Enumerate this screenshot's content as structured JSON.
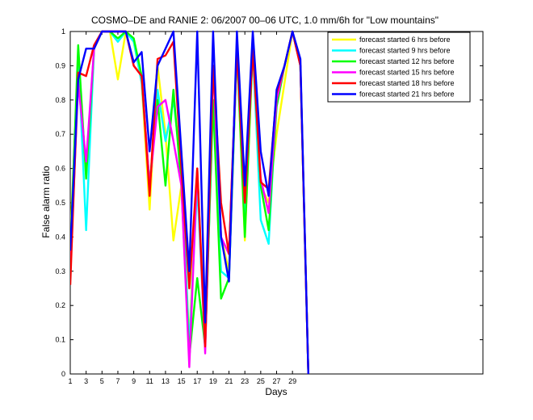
{
  "chart_data": {
    "type": "line",
    "title": "COSMO–DE and RANIE 2: 06/2007 00–06 UTC, 1.0 mm/6h for \"Low mountains\"",
    "xlabel": "Days",
    "ylabel": "False alarm ratio",
    "xlim": [
      1,
      53
    ],
    "ylim": [
      0,
      1
    ],
    "xticks": [
      1,
      3,
      5,
      7,
      9,
      11,
      13,
      15,
      17,
      19,
      21,
      23,
      25,
      27,
      29
    ],
    "yticks": [
      0,
      0.1,
      0.2,
      0.3,
      0.4,
      0.5,
      0.6,
      0.7,
      0.8,
      0.9,
      1
    ],
    "ytick_labels": [
      "0",
      "0.1",
      "0.2",
      "0.3",
      "0.4",
      "0.5",
      "0.6",
      "0.7",
      "0.8",
      "0.9",
      "1"
    ],
    "legend_position": "top-right",
    "grid": false,
    "x": [
      1,
      2,
      3,
      4,
      5,
      6,
      7,
      8,
      9,
      10,
      11,
      12,
      13,
      14,
      15,
      16,
      17,
      18,
      19,
      20,
      21,
      22,
      23,
      24,
      25,
      26,
      27,
      28,
      29,
      30,
      31
    ],
    "series": [
      {
        "name": "forecast started 6 hrs before",
        "color": "#ffff00",
        "values": [
          0.4,
          0.9,
          0.6,
          0.95,
          1.0,
          1.0,
          0.86,
          1.0,
          0.97,
          0.85,
          0.48,
          0.9,
          0.7,
          0.39,
          0.55,
          0.1,
          0.6,
          0.1,
          0.9,
          0.4,
          0.3,
          0.95,
          0.39,
          0.95,
          0.55,
          0.5,
          0.7,
          0.85,
          1.0,
          0.9,
          0.0
        ]
      },
      {
        "name": "forecast started 9 hrs before",
        "color": "#00ffff",
        "values": [
          0.35,
          0.93,
          0.42,
          0.95,
          1.0,
          1.0,
          0.97,
          1.0,
          0.97,
          0.85,
          0.55,
          0.83,
          0.68,
          0.8,
          0.6,
          0.08,
          0.55,
          0.08,
          0.8,
          0.3,
          0.28,
          0.95,
          0.45,
          0.95,
          0.45,
          0.38,
          0.8,
          0.9,
          1.0,
          0.9,
          0.0
        ]
      },
      {
        "name": "forecast started 12 hrs before",
        "color": "#00ff00",
        "values": [
          0.35,
          0.96,
          0.57,
          0.95,
          1.0,
          1.0,
          0.98,
          1.0,
          0.98,
          0.87,
          0.55,
          0.8,
          0.55,
          0.83,
          0.55,
          0.05,
          0.28,
          0.08,
          0.8,
          0.22,
          0.28,
          0.95,
          0.4,
          0.95,
          0.55,
          0.42,
          0.78,
          0.9,
          1.0,
          0.9,
          0.0
        ]
      },
      {
        "name": "forecast started 15 hrs before",
        "color": "#ff00ff",
        "values": [
          0.3,
          0.85,
          0.62,
          0.95,
          1.0,
          1.0,
          1.0,
          1.0,
          0.9,
          0.87,
          0.55,
          0.78,
          0.8,
          0.68,
          0.55,
          0.02,
          0.6,
          0.06,
          0.9,
          0.4,
          0.35,
          0.95,
          0.5,
          0.95,
          0.57,
          0.47,
          0.8,
          0.9,
          1.0,
          0.9,
          0.0
        ]
      },
      {
        "name": "forecast started 18 hrs before",
        "color": "#ff0000",
        "values": [
          0.26,
          0.88,
          0.87,
          0.96,
          1.0,
          1.0,
          1.0,
          1.0,
          0.9,
          0.87,
          0.52,
          0.92,
          0.93,
          0.97,
          0.6,
          0.25,
          0.6,
          0.08,
          0.9,
          0.5,
          0.35,
          0.95,
          0.5,
          0.95,
          0.56,
          0.54,
          0.82,
          0.9,
          1.0,
          0.9,
          0.0
        ]
      },
      {
        "name": "forecast started 21 hrs before",
        "color": "#0000ff",
        "values": [
          0.36,
          0.86,
          0.95,
          0.95,
          1.0,
          1.0,
          1.0,
          1.0,
          0.91,
          0.94,
          0.65,
          0.9,
          0.95,
          1.0,
          0.65,
          0.3,
          1.0,
          0.15,
          1.0,
          0.4,
          0.27,
          1.0,
          0.55,
          1.0,
          0.65,
          0.52,
          0.83,
          0.9,
          1.0,
          0.92,
          0.0
        ]
      }
    ]
  }
}
